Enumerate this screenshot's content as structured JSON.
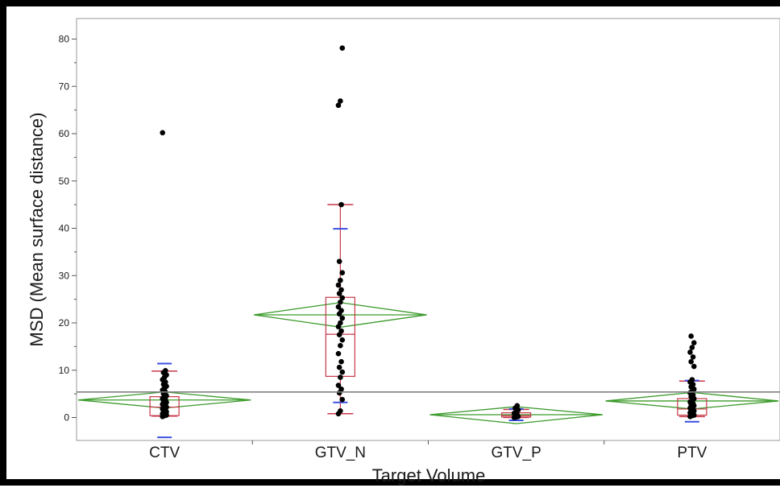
{
  "chart_data": {
    "type": "box",
    "xlabel": "Target Volume",
    "ylabel": "MSD (Mean surface distance)",
    "ylim": [
      -5,
      82
    ],
    "yticks": [
      0,
      10,
      20,
      30,
      40,
      50,
      60,
      70,
      80
    ],
    "categories": [
      "CTV",
      "GTV_N",
      "GTV_P",
      "PTV"
    ],
    "grand_mean": 5.4,
    "colors": {
      "box": "#c8384a",
      "diamond": "#3a9a2a",
      "std_bar": "#3b4fe0",
      "points": "#000000",
      "mean_line": "#808080",
      "frame": "#9a9a9a"
    },
    "groups": [
      {
        "name": "CTV",
        "mean": 3.7,
        "diamond_low": 2.0,
        "diamond_high": 5.4,
        "q1": 0.4,
        "median": 2.2,
        "q3": 4.4,
        "whisker_low": 0.3,
        "whisker_high": 9.8,
        "std_low": -4.2,
        "std_high": 11.4,
        "points": [
          0.2,
          0.4,
          0.5,
          0.6,
          0.7,
          0.8,
          1.0,
          1.2,
          1.4,
          1.6,
          1.8,
          2.0,
          2.2,
          2.4,
          2.6,
          2.8,
          3.0,
          3.2,
          3.5,
          3.8,
          4.0,
          4.3,
          4.6,
          5.0,
          5.4,
          5.8,
          6.2,
          6.6,
          7.0,
          7.5,
          8.0,
          8.5,
          9.0,
          9.5,
          9.9,
          60.2
        ]
      },
      {
        "name": "GTV_N",
        "mean": 21.7,
        "diamond_low": 19.1,
        "diamond_high": 24.3,
        "q1": 8.7,
        "median": 17.6,
        "q3": 25.4,
        "whisker_low": 0.8,
        "whisker_high": 45.0,
        "std_low": 3.2,
        "std_high": 39.9,
        "points": [
          0.8,
          1.4,
          3.8,
          5.2,
          6.0,
          6.8,
          8.5,
          9.6,
          10.6,
          11.8,
          13.5,
          15.2,
          16.4,
          17.5,
          18.3,
          19.2,
          20.0,
          21.0,
          21.9,
          22.6,
          23.4,
          24.4,
          25.3,
          26.2,
          27.0,
          28.0,
          29.0,
          30.6,
          33.0,
          45.0,
          66.0,
          66.9,
          78.1
        ]
      },
      {
        "name": "GTV_P",
        "mean": 0.6,
        "diamond_low": -1.3,
        "diamond_high": 2.3,
        "q1": 0.1,
        "median": 0.4,
        "q3": 1.0,
        "whisker_low": 0.0,
        "whisker_high": 1.7,
        "std_low": -0.6,
        "std_high": 1.8,
        "points": [
          0.0,
          0.1,
          0.2,
          0.4,
          0.6,
          0.9,
          1.2,
          1.6,
          2.0,
          2.5
        ]
      },
      {
        "name": "PTV",
        "mean": 3.5,
        "diamond_low": 1.8,
        "diamond_high": 5.3,
        "q1": 0.5,
        "median": 1.8,
        "q3": 4.0,
        "whisker_low": 0.2,
        "whisker_high": 7.7,
        "std_low": -0.9,
        "std_high": 7.8,
        "points": [
          0.2,
          0.4,
          0.5,
          0.7,
          0.9,
          1.0,
          1.2,
          1.4,
          1.6,
          1.8,
          2.0,
          2.2,
          2.5,
          2.8,
          3.0,
          3.3,
          3.6,
          4.0,
          4.4,
          4.8,
          5.2,
          5.6,
          6.0,
          6.5,
          7.0,
          7.5,
          8.0,
          10.8,
          11.8,
          12.8,
          13.8,
          14.8,
          15.8,
          17.2
        ]
      }
    ]
  }
}
